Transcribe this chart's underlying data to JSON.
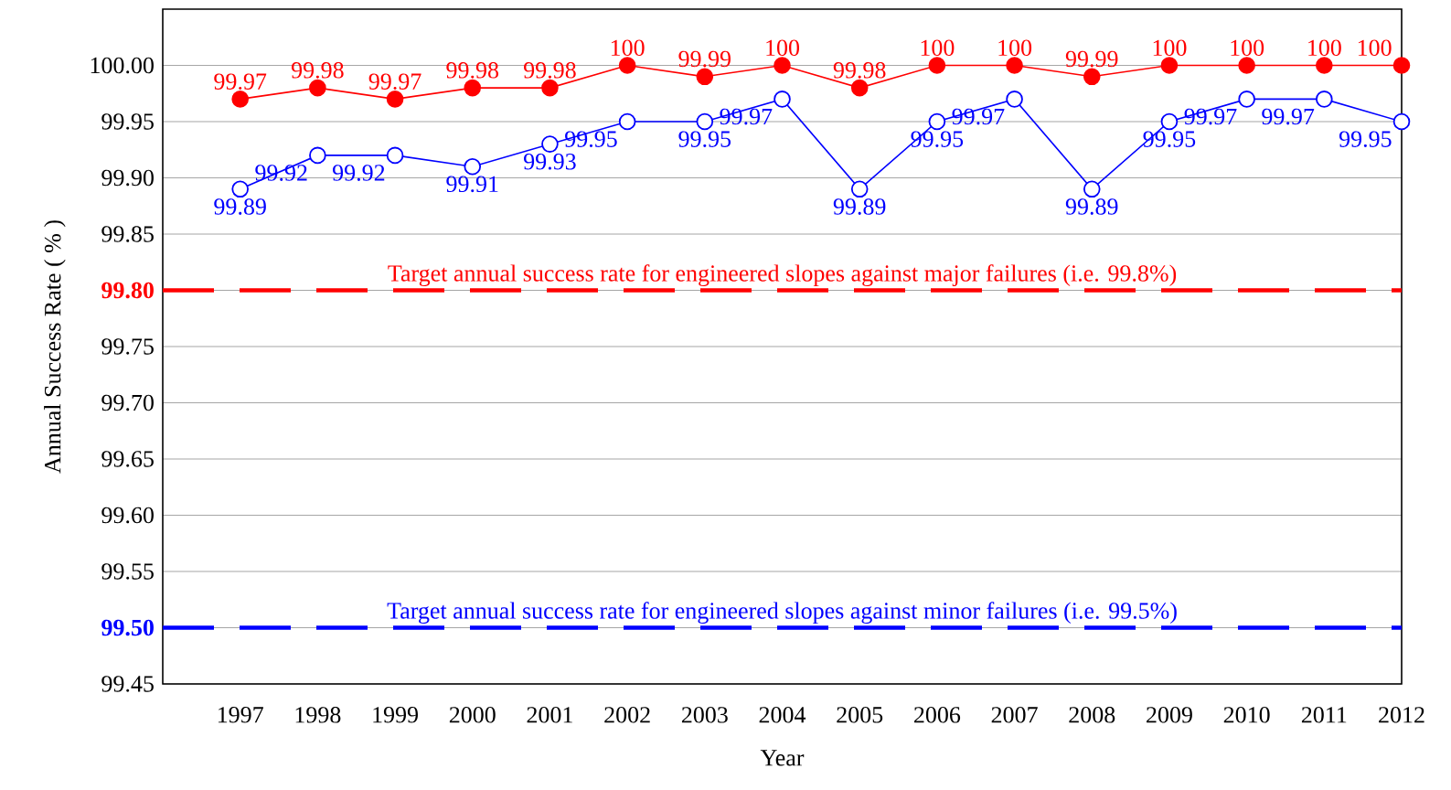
{
  "chart_data": {
    "type": "line",
    "xlabel": "Year",
    "ylabel": "Annual Success Rate ( % )",
    "x": [
      1997,
      1998,
      1999,
      2000,
      2001,
      2002,
      2003,
      2004,
      2005,
      2006,
      2007,
      2008,
      2009,
      2010,
      2011,
      2012
    ],
    "series": [
      {
        "color": "#ff0000",
        "values": [
          99.97,
          99.98,
          99.97,
          99.98,
          99.98,
          100,
          99.99,
          100,
          99.98,
          100,
          100,
          99.99,
          100,
          100,
          100,
          100
        ]
      },
      {
        "color": "#0000ff",
        "values": [
          99.89,
          99.92,
          99.92,
          99.91,
          99.93,
          99.95,
          99.95,
          99.97,
          99.89,
          99.95,
          99.97,
          99.89,
          99.95,
          99.97,
          99.97,
          99.95
        ]
      }
    ],
    "xlim": [
      1996,
      2012
    ],
    "xticks": [
      1997,
      1998,
      1999,
      2000,
      2001,
      2002,
      2003,
      2004,
      2005,
      2006,
      2007,
      2008,
      2009,
      2010,
      2011,
      2012
    ],
    "ylim": [
      99.45,
      100.05
    ],
    "yticks": [
      {
        "value": 99.45,
        "label": "99.45"
      },
      {
        "value": 99.5,
        "label": "99.50"
      },
      {
        "value": 99.55,
        "label": "99.55"
      },
      {
        "value": 99.6,
        "label": "99.60"
      },
      {
        "value": 99.65,
        "label": "99.65"
      },
      {
        "value": 99.7,
        "label": "99.70"
      },
      {
        "value": 99.75,
        "label": "99.75"
      },
      {
        "value": 99.8,
        "label": "99.80"
      },
      {
        "value": 99.85,
        "label": "99.85"
      },
      {
        "value": 99.9,
        "label": "99.90"
      },
      {
        "value": 99.95,
        "label": "99.95"
      },
      {
        "value": 100,
        "label": "100.00"
      }
    ],
    "ref_lines": [
      {
        "axis": "y",
        "value": 99.8,
        "label": "Target annual success rate for engineered slopes against major failures (i.e. 99.8%)",
        "color": "#ff0000",
        "line_style": "dashed"
      },
      {
        "axis": "y",
        "value": 99.5,
        "label": "Target annual success rate for engineered slopes against minor failures (i.e. 99.5%)",
        "color": "#0000ff",
        "line_style": "dashed"
      }
    ],
    "grid": "y",
    "marker": "circle",
    "line_style": "solid",
    "data_labels": true
  }
}
